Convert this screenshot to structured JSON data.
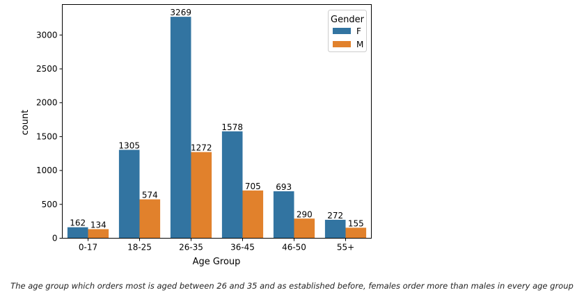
{
  "chart_data": {
    "type": "bar",
    "xlabel": "Age Group",
    "ylabel": "count",
    "ylim": [
      0,
      3450
    ],
    "yticks": [
      0,
      500,
      1000,
      1500,
      2000,
      2500,
      3000
    ],
    "categories": [
      "0-17",
      "18-25",
      "26-35",
      "36-45",
      "46-50",
      "55+"
    ],
    "series": [
      {
        "name": "F",
        "color": "#3274a1",
        "values": [
          162,
          1305,
          3269,
          1578,
          693,
          272
        ]
      },
      {
        "name": "M",
        "color": "#e1812c",
        "values": [
          134,
          574,
          1272,
          705,
          290,
          155
        ]
      }
    ],
    "legend": {
      "title": "Gender",
      "position": "top-right"
    },
    "grid": false
  },
  "caption": "The age group which orders most is aged between 26 and 35 and as established before, females order more than males in every age group"
}
